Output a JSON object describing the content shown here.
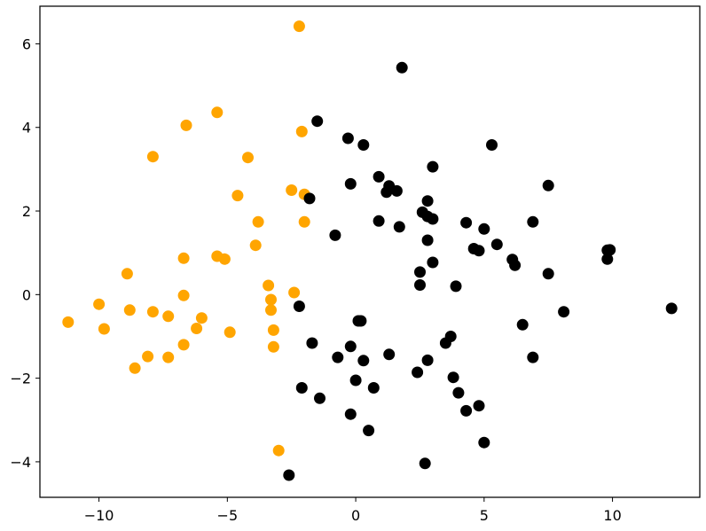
{
  "chart_data": {
    "type": "scatter",
    "title": "",
    "xlabel": "",
    "ylabel": "",
    "xlim": [
      -12.3,
      13.4
    ],
    "ylim": [
      -4.85,
      6.9
    ],
    "xticks": [
      -10,
      -5,
      0,
      5,
      10
    ],
    "yticks": [
      -4,
      -2,
      0,
      2,
      4,
      6
    ],
    "xtick_labels": [
      "−10",
      "−5",
      "0",
      "5",
      "10"
    ],
    "ytick_labels": [
      "−4",
      "−2",
      "0",
      "2",
      "4",
      "6"
    ],
    "grid": false,
    "series": [
      {
        "color": "#ffa500",
        "points": [
          [
            -2.2,
            6.42
          ],
          [
            -5.4,
            4.36
          ],
          [
            -6.6,
            4.05
          ],
          [
            -7.9,
            3.3
          ],
          [
            -4.2,
            3.28
          ],
          [
            -2.1,
            3.9
          ],
          [
            -4.6,
            2.37
          ],
          [
            -2.5,
            2.5
          ],
          [
            -2.0,
            2.4
          ],
          [
            -3.8,
            1.74
          ],
          [
            -2.0,
            1.74
          ],
          [
            -3.9,
            1.18
          ],
          [
            -5.4,
            0.92
          ],
          [
            -5.1,
            0.85
          ],
          [
            -6.7,
            0.87
          ],
          [
            -8.9,
            0.5
          ],
          [
            -3.4,
            0.22
          ],
          [
            -6.7,
            -0.02
          ],
          [
            -2.4,
            0.05
          ],
          [
            -3.3,
            -0.12
          ],
          [
            -10.0,
            -0.23
          ],
          [
            -8.8,
            -0.37
          ],
          [
            -7.9,
            -0.41
          ],
          [
            -7.3,
            -0.52
          ],
          [
            -3.3,
            -0.37
          ],
          [
            -11.2,
            -0.66
          ],
          [
            -6.0,
            -0.56
          ],
          [
            -9.8,
            -0.82
          ],
          [
            -6.2,
            -0.81
          ],
          [
            -3.2,
            -0.85
          ],
          [
            -4.9,
            -0.9
          ],
          [
            -6.7,
            -1.2
          ],
          [
            -3.2,
            -1.25
          ],
          [
            -8.1,
            -1.48
          ],
          [
            -7.3,
            -1.5
          ],
          [
            -8.6,
            -1.76
          ],
          [
            -3.0,
            -3.73
          ]
        ]
      },
      {
        "color": "#000000",
        "points": [
          [
            1.8,
            5.43
          ],
          [
            -1.5,
            4.15
          ],
          [
            -0.3,
            3.74
          ],
          [
            0.3,
            3.58
          ],
          [
            5.3,
            3.58
          ],
          [
            3.0,
            3.06
          ],
          [
            0.9,
            2.82
          ],
          [
            -0.2,
            2.65
          ],
          [
            1.3,
            2.6
          ],
          [
            7.5,
            2.61
          ],
          [
            1.2,
            2.45
          ],
          [
            1.6,
            2.48
          ],
          [
            -1.8,
            2.3
          ],
          [
            2.8,
            2.24
          ],
          [
            2.6,
            1.97
          ],
          [
            2.8,
            1.87
          ],
          [
            3.0,
            1.81
          ],
          [
            0.9,
            1.76
          ],
          [
            4.3,
            1.72
          ],
          [
            6.9,
            1.74
          ],
          [
            1.7,
            1.62
          ],
          [
            5.0,
            1.57
          ],
          [
            -0.8,
            1.42
          ],
          [
            2.8,
            1.3
          ],
          [
            5.5,
            1.2
          ],
          [
            4.6,
            1.1
          ],
          [
            4.8,
            1.05
          ],
          [
            9.8,
            1.06
          ],
          [
            9.9,
            1.07
          ],
          [
            6.1,
            0.84
          ],
          [
            9.8,
            0.85
          ],
          [
            3.0,
            0.77
          ],
          [
            6.2,
            0.7
          ],
          [
            2.5,
            0.54
          ],
          [
            7.5,
            0.5
          ],
          [
            2.5,
            0.23
          ],
          [
            3.9,
            0.2
          ],
          [
            -2.2,
            -0.28
          ],
          [
            12.3,
            -0.33
          ],
          [
            8.1,
            -0.41
          ],
          [
            0.1,
            -0.63
          ],
          [
            0.2,
            -0.63
          ],
          [
            6.5,
            -0.72
          ],
          [
            3.7,
            -1.0
          ],
          [
            -1.7,
            -1.16
          ],
          [
            3.5,
            -1.16
          ],
          [
            -0.2,
            -1.24
          ],
          [
            1.3,
            -1.43
          ],
          [
            -0.7,
            -1.5
          ],
          [
            6.9,
            -1.5
          ],
          [
            0.3,
            -1.58
          ],
          [
            2.8,
            -1.57
          ],
          [
            2.4,
            -1.86
          ],
          [
            3.8,
            -1.98
          ],
          [
            -0.0,
            -2.05
          ],
          [
            -2.1,
            -2.23
          ],
          [
            0.7,
            -2.23
          ],
          [
            4.0,
            -2.35
          ],
          [
            -1.4,
            -2.48
          ],
          [
            4.8,
            -2.66
          ],
          [
            4.3,
            -2.78
          ],
          [
            -0.2,
            -2.86
          ],
          [
            0.5,
            -3.25
          ],
          [
            5.0,
            -3.54
          ],
          [
            2.7,
            -4.04
          ],
          [
            -2.6,
            -4.32
          ]
        ]
      }
    ]
  }
}
